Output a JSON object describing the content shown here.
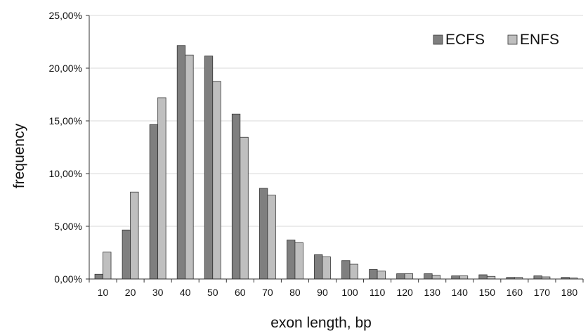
{
  "chart_data": {
    "type": "bar",
    "title": "",
    "xlabel": "exon length, bp",
    "ylabel": "frequency",
    "categories": [
      "10",
      "20",
      "30",
      "40",
      "50",
      "60",
      "70",
      "80",
      "90",
      "100",
      "110",
      "120",
      "130",
      "140",
      "150",
      "160",
      "170",
      "180"
    ],
    "series": [
      {
        "name": "ECFS",
        "color": "#7f7f7f",
        "values": [
          0.45,
          4.65,
          14.65,
          22.15,
          21.15,
          15.65,
          8.6,
          3.7,
          2.3,
          1.75,
          0.9,
          0.5,
          0.5,
          0.3,
          0.4,
          0.15,
          0.3,
          0.15
        ]
      },
      {
        "name": "ENFS",
        "color": "#bfbfbf",
        "values": [
          2.55,
          8.25,
          17.2,
          21.25,
          18.75,
          13.45,
          7.95,
          3.45,
          2.1,
          1.4,
          0.75,
          0.5,
          0.35,
          0.3,
          0.25,
          0.15,
          0.2,
          0.1
        ]
      }
    ],
    "y_ticks": [
      "0,00%",
      "5,00%",
      "10,00%",
      "15,00%",
      "20,00%",
      "25,00%"
    ],
    "ylim": [
      0,
      25
    ],
    "y_tick_step": 5,
    "grid": true,
    "legend_position": "top-right"
  }
}
